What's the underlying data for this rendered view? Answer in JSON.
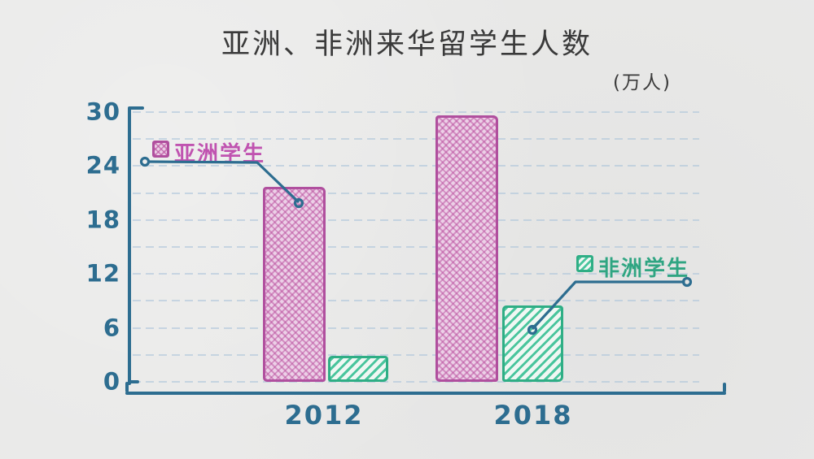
{
  "chart_data": {
    "type": "bar",
    "title": "亚洲、非洲来华留学生人数",
    "unit_label": "(万人)",
    "xlabel": "",
    "ylabel": "万人",
    "categories": [
      "2012",
      "2018"
    ],
    "series": [
      {
        "name": "亚洲学生",
        "values": [
          21.7,
          29.6
        ],
        "fill_style": "pink-crosshatch",
        "color": "#b04f9e"
      },
      {
        "name": "非洲学生",
        "values": [
          2.9,
          8.5
        ],
        "fill_style": "green-diagonal-hatch",
        "color": "#2fae85"
      }
    ],
    "ylim": [
      0,
      30
    ],
    "yticks": [
      30,
      24,
      18,
      12,
      6,
      0
    ],
    "gridline_step": 3,
    "grid": "dashed horizontal ruled-paper lines",
    "legend_position": "callout labels pointing to bars"
  },
  "style": {
    "paper_color": "#e9e9e8",
    "ink_blue": "#2d6d90",
    "grid_blue": "#acc4da",
    "asia_text_color": "#c053b0",
    "africa_text_color": "#2fa582",
    "title_color": "#3a3a3a"
  }
}
